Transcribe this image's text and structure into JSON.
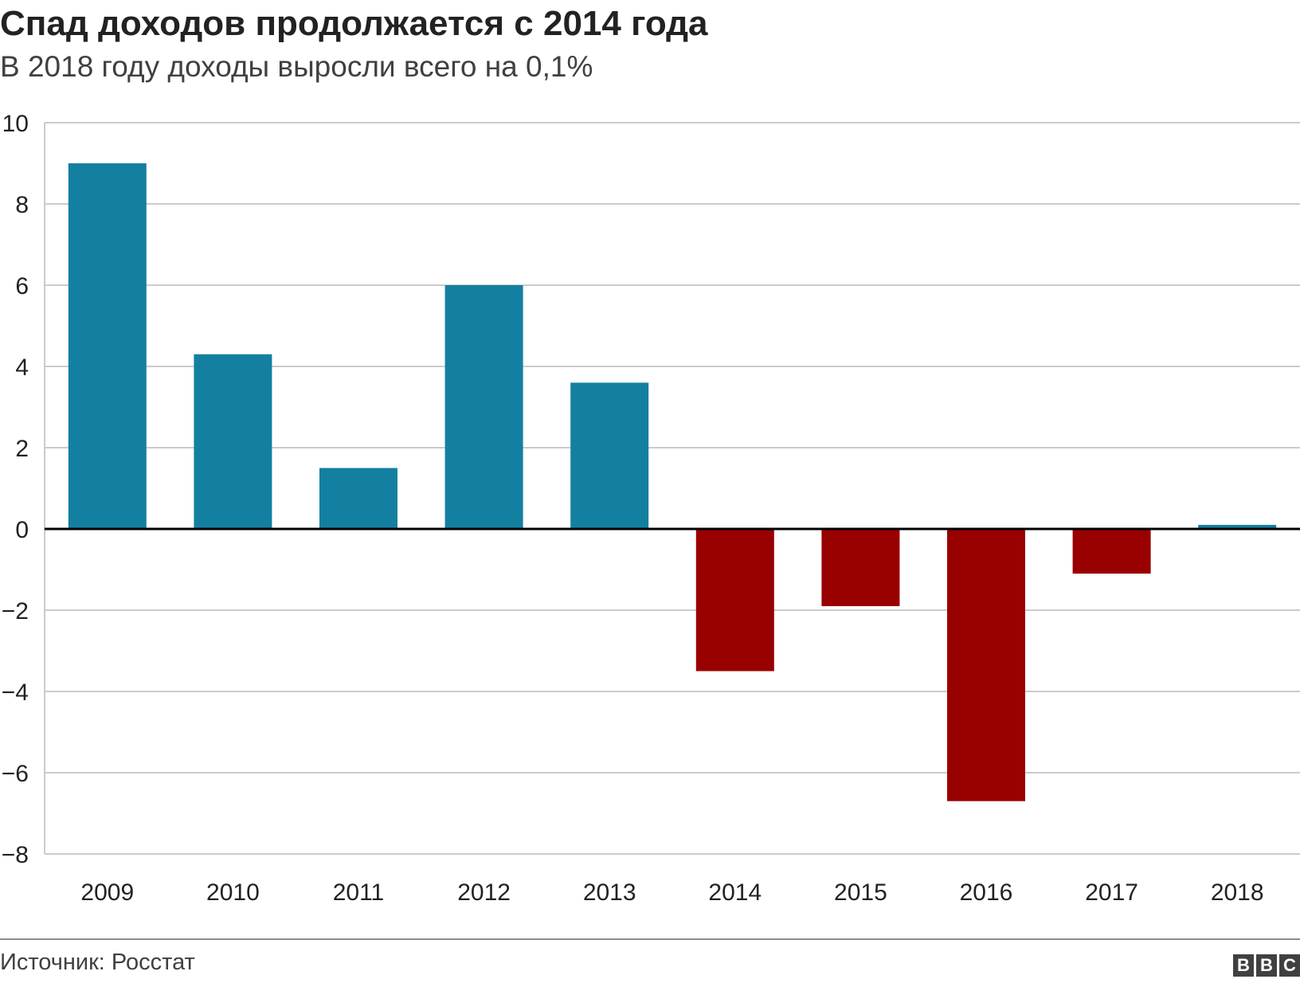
{
  "header": {
    "title": "Спад доходов продолжается с 2014 года",
    "subtitle": "В 2018 году доходы выросли всего на 0,1%"
  },
  "footer": {
    "source": "Источник: Росстат",
    "logo_letters": [
      "B",
      "B",
      "C"
    ]
  },
  "colors": {
    "positive": "#1380A1",
    "negative": "#990000",
    "grid": "#cbcbcb",
    "zero_line": "#000000"
  },
  "chart_data": {
    "type": "bar",
    "categories": [
      "2009",
      "2010",
      "2011",
      "2012",
      "2013",
      "2014",
      "2015",
      "2016",
      "2017",
      "2018"
    ],
    "values": [
      9.0,
      4.3,
      1.5,
      6.0,
      3.6,
      -3.5,
      -1.9,
      -6.7,
      -1.1,
      0.1
    ],
    "ylim": [
      -8,
      10
    ],
    "yticks": [
      10,
      8,
      6,
      4,
      2,
      0,
      -2,
      -4,
      -6,
      -8
    ],
    "ytick_labels": [
      "10",
      "8",
      "6",
      "4",
      "2",
      "0",
      "−2",
      "−4",
      "−6",
      "−8"
    ],
    "grid": true,
    "legend": "none"
  }
}
